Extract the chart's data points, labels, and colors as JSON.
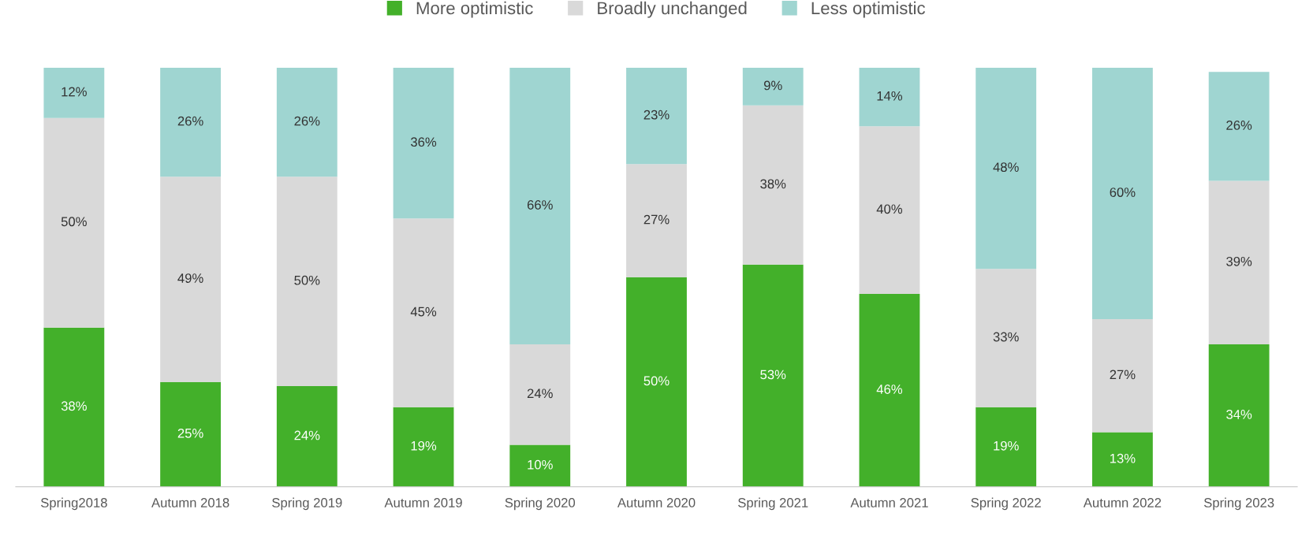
{
  "chart_data": {
    "type": "bar",
    "stacked": true,
    "legend": "top",
    "grid": false,
    "categories": [
      "Spring2018",
      "Autumn 2018",
      "Spring 2019",
      "Autumn 2019",
      "Spring 2020",
      "Autumn 2020",
      "Spring 2021",
      "Autumn 2021",
      "Spring 2022",
      "Autumn 2022",
      "Spring 2023"
    ],
    "series": [
      {
        "name": "More optimistic",
        "color": "#43b02a",
        "values": [
          38,
          25,
          24,
          19,
          10,
          50,
          53,
          46,
          19,
          13,
          34
        ],
        "value_labels": [
          "38%",
          "25%",
          "24%",
          "19%",
          "10%",
          "50%",
          "53%",
          "46%",
          "19%",
          "13%",
          "34%"
        ]
      },
      {
        "name": "Broadly unchanged",
        "color": "#d9d9d9",
        "values": [
          50,
          49,
          50,
          45,
          24,
          27,
          38,
          40,
          33,
          27,
          39
        ],
        "value_labels": [
          "50%",
          "49%",
          "50%",
          "45%",
          "24%",
          "27%",
          "38%",
          "40%",
          "33%",
          "27%",
          "39%"
        ]
      },
      {
        "name": "Less optimistic",
        "color": "#9fd5d1",
        "values": [
          12,
          26,
          26,
          36,
          66,
          23,
          9,
          14,
          48,
          60,
          26
        ],
        "value_labels": [
          "12%",
          "26%",
          "26%",
          "36%",
          "66%",
          "23%",
          "9%",
          "14%",
          "48%",
          "60%",
          "26%"
        ]
      }
    ]
  }
}
